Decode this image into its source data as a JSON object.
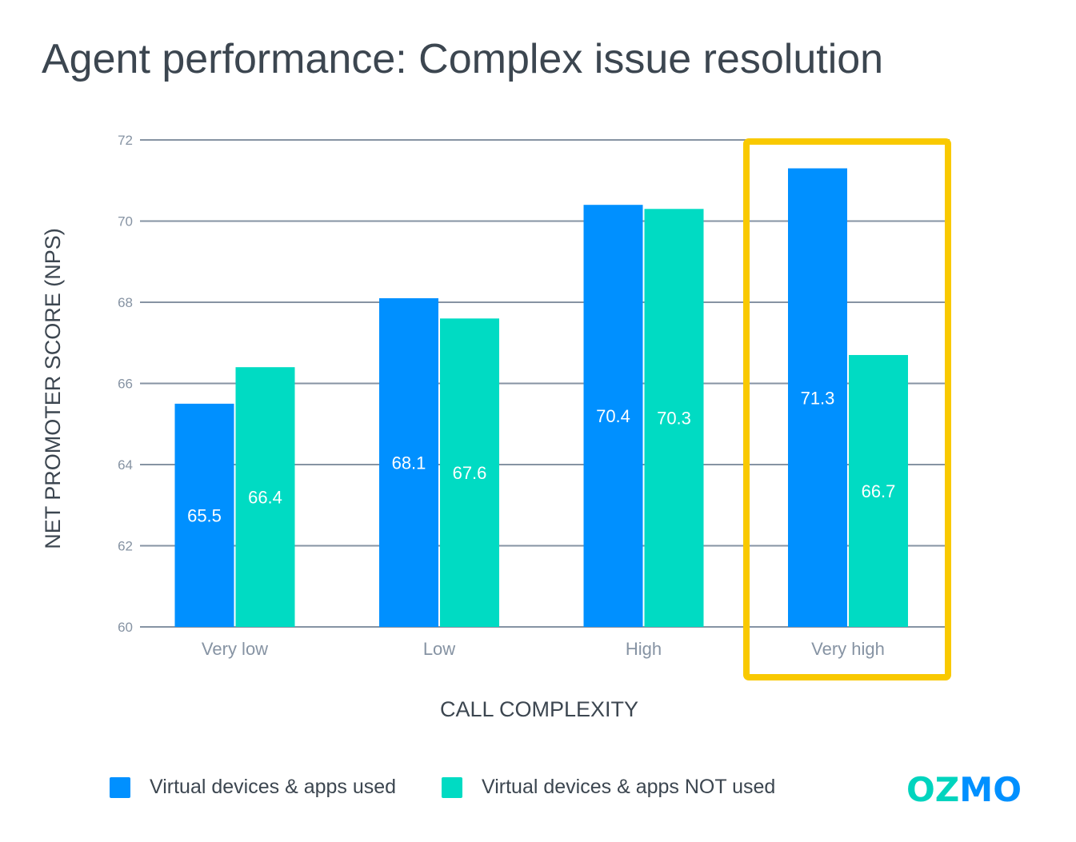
{
  "chart_data": {
    "type": "bar",
    "title": "Agent performance: Complex issue resolution",
    "xlabel": "CALL COMPLEXITY",
    "ylabel": "NET PROMOTER SCORE (NPS)",
    "categories": [
      "Very low",
      "Low",
      "High",
      "Very high"
    ],
    "ylim": [
      60,
      72
    ],
    "yticks": [
      60,
      62,
      64,
      66,
      68,
      70,
      72
    ],
    "grid": true,
    "legend_position": "bottom",
    "series": [
      {
        "name": "Virtual devices & apps used",
        "color": "#0090FF",
        "values": [
          65.5,
          68.1,
          70.4,
          71.3
        ]
      },
      {
        "name": "Virtual devices & apps NOT used",
        "color": "#00DBC3",
        "values": [
          66.4,
          67.6,
          70.3,
          66.7
        ]
      }
    ],
    "highlight": {
      "category": "Very high",
      "color": "#F9C900"
    }
  },
  "logo": {
    "text": "OZMO"
  }
}
